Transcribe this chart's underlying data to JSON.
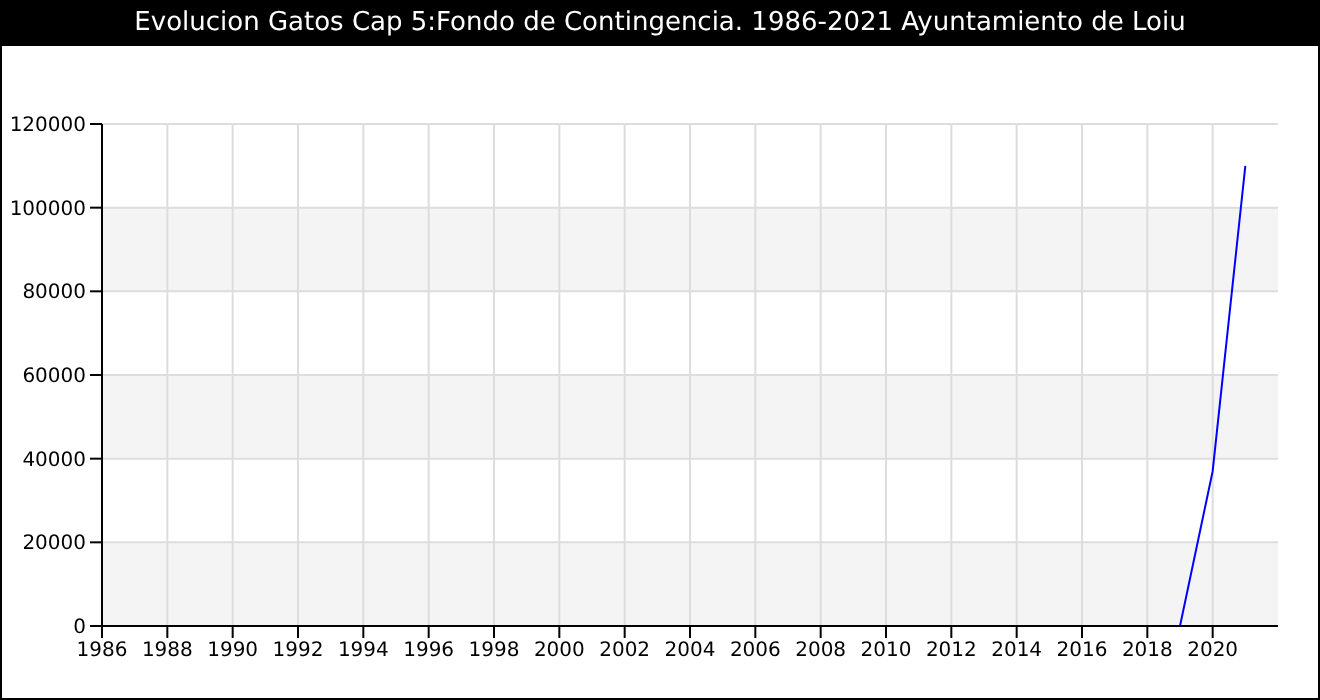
{
  "chart_data": {
    "type": "line",
    "title": "Evolucion Gatos Cap 5:Fondo de Contingencia. 1986-2021 Ayuntamiento de Loiu",
    "x": [
      2019,
      2020,
      2021
    ],
    "series": [
      {
        "color": "#0000ff",
        "values": [
          0,
          37000,
          110000
        ]
      }
    ],
    "xlim": [
      1986,
      2022
    ],
    "xticks": [
      1986,
      1988,
      1990,
      1992,
      1994,
      1996,
      1998,
      2000,
      2002,
      2004,
      2006,
      2008,
      2010,
      2012,
      2014,
      2016,
      2018,
      2020
    ],
    "ylim": [
      0,
      120000
    ],
    "yticks": [
      0,
      20000,
      40000,
      60000,
      80000,
      100000,
      120000
    ],
    "grid": true,
    "marker": "none",
    "line_style": "solid"
  }
}
